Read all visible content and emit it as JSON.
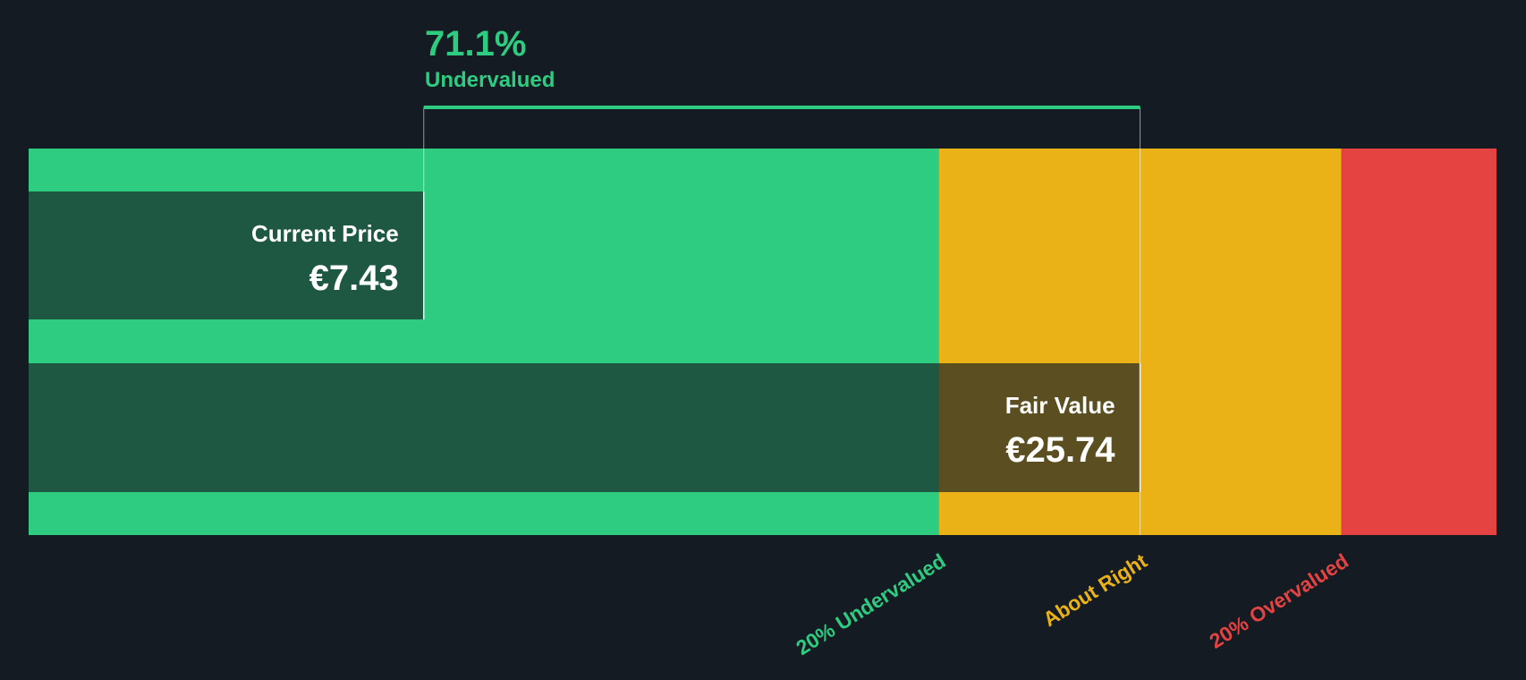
{
  "chart_data": {
    "type": "valuation-bar",
    "headline": "71.1%",
    "headline_sub": "Undervalued",
    "categories": [
      "Current Price",
      "Fair Value"
    ],
    "values": [
      7.43,
      25.74
    ],
    "value_labels": [
      "€7.43",
      "€25.74"
    ],
    "xlim": [
      -2.67,
      34.85
    ],
    "zones": [
      {
        "name": "20% Undervalued",
        "color": "#2ecc80"
      },
      {
        "name": "About Right",
        "color": "#eab217"
      },
      {
        "name": "20% Overvalued",
        "color": "#e54242"
      }
    ]
  }
}
